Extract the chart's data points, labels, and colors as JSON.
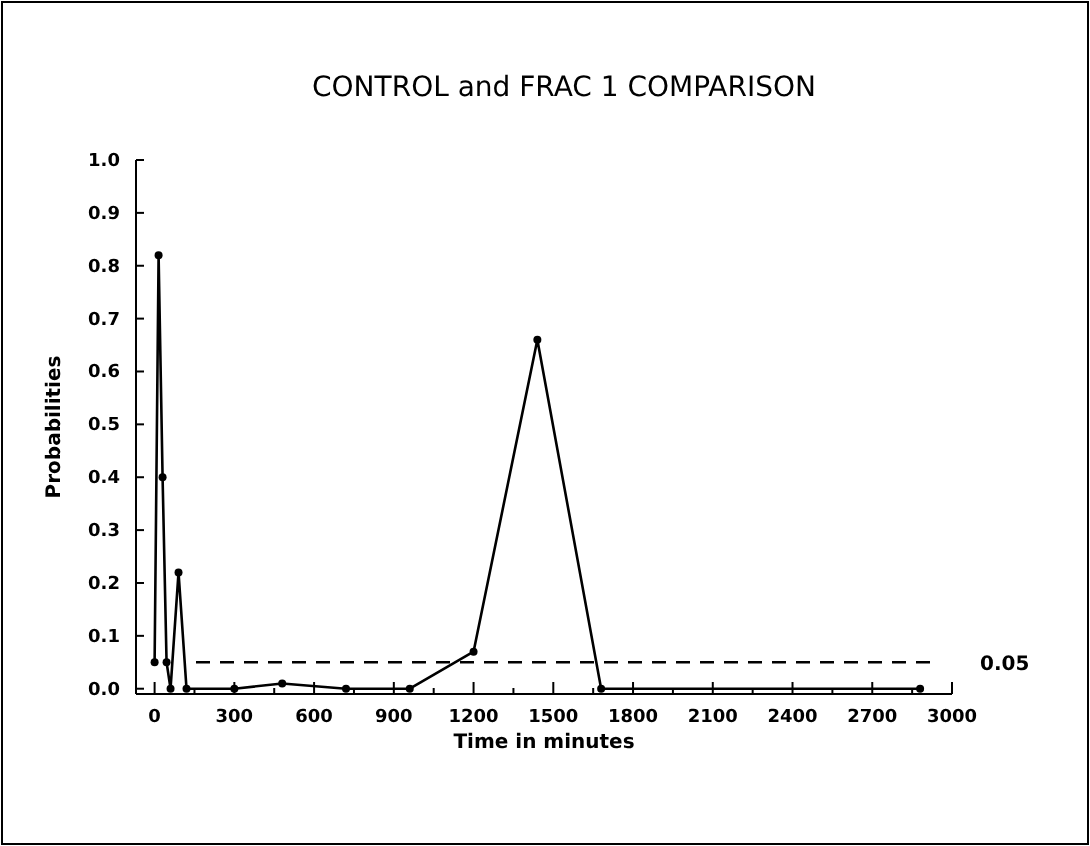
{
  "chart_data": {
    "type": "line",
    "title": "CONTROL and FRAC 1 COMPARISON",
    "xlabel": "Time in minutes",
    "ylabel": "Probabilities",
    "x": [
      0,
      15,
      30,
      45,
      60,
      90,
      120,
      300,
      480,
      720,
      960,
      1200,
      1440,
      1680,
      2880
    ],
    "series": [
      {
        "color": "#000000",
        "values": [
          0.05,
          0.82,
          0.4,
          0.05,
          0.0,
          0.22,
          0.0,
          0.0,
          0.01,
          0.0,
          0.0,
          0.07,
          0.66,
          0.0,
          0.0
        ]
      }
    ],
    "xlim": [
      -70,
      3000
    ],
    "xticks": [
      0,
      {
        "value": 150,
        "label": null
      },
      300,
      {
        "value": 450,
        "label": null
      },
      600,
      {
        "value": 750,
        "label": null
      },
      900,
      {
        "value": 1050,
        "label": null
      },
      1200,
      {
        "value": 1350,
        "label": null
      },
      1500,
      {
        "value": 1650,
        "label": null
      },
      1800,
      {
        "value": 1950,
        "label": null
      },
      2100,
      {
        "value": 2250,
        "label": null
      },
      2400,
      {
        "value": 2550,
        "label": null
      },
      2700,
      {
        "value": 2850,
        "label": null
      },
      3000
    ],
    "ylim": [
      -0.01,
      1.0
    ],
    "yticks": [
      {
        "value": 0,
        "label": "0.0"
      },
      0.1,
      0.2,
      0.3,
      0.4,
      0.5,
      0.6,
      0.7,
      0.8,
      0.9,
      {
        "value": 1,
        "label": "1.0"
      }
    ],
    "ref_lines": [
      {
        "axis": "y",
        "value": 0.05,
        "label": "0.05",
        "line_style": "dashed"
      }
    ],
    "marker": "circle",
    "line_style": "solid",
    "grid": false
  }
}
